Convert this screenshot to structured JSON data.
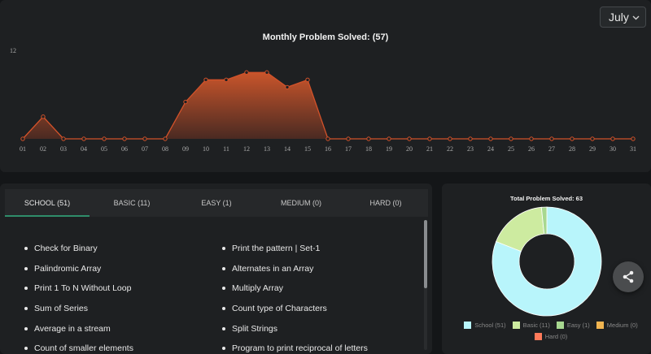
{
  "month_select": {
    "value": "July"
  },
  "chart": {
    "title": "Monthly Problem Solved: (57)"
  },
  "chart_data": {
    "type": "area",
    "title": "Monthly Problem Solved: (57)",
    "x": [
      "01",
      "02",
      "03",
      "04",
      "05",
      "06",
      "07",
      "08",
      "09",
      "10",
      "11",
      "12",
      "13",
      "14",
      "15",
      "16",
      "17",
      "18",
      "19",
      "20",
      "21",
      "22",
      "23",
      "24",
      "25",
      "26",
      "27",
      "28",
      "29",
      "30",
      "31"
    ],
    "values": [
      0,
      3,
      0,
      0,
      0,
      0,
      0,
      0,
      5,
      8,
      8,
      9,
      9,
      7,
      8,
      0,
      0,
      0,
      0,
      0,
      0,
      0,
      0,
      0,
      0,
      0,
      0,
      0,
      0,
      0,
      0
    ],
    "ylim": [
      0,
      12
    ],
    "yticks": [
      "12"
    ],
    "colors": {
      "line": "#d2522a",
      "fill_top": "#c9552b",
      "fill_bottom": "#4a2a22",
      "marker_fill": "#1e2022"
    },
    "grid": false
  },
  "tabs": [
    {
      "label": "SCHOOL (51)",
      "active": true
    },
    {
      "label": "BASIC (11)",
      "active": false
    },
    {
      "label": "EASY (1)",
      "active": false
    },
    {
      "label": "MEDIUM (0)",
      "active": false
    },
    {
      "label": "HARD (0)",
      "active": false
    }
  ],
  "problems": {
    "col1": [
      "Check for Binary",
      "Palindromic Array",
      "Print 1 To N Without Loop",
      "Sum of Series",
      "Average in a stream",
      "Count of smaller elements"
    ],
    "col2": [
      "Print the pattern | Set-1",
      "Alternates in an Array",
      "Multiply Array",
      "Count type of Characters",
      "Split Strings",
      "Program to print reciprocal of letters"
    ]
  },
  "donut": {
    "title": "Total Problem Solved: 63",
    "chart_data": {
      "type": "pie",
      "categories": [
        "School",
        "Basic",
        "Easy",
        "Medium",
        "Hard"
      ],
      "values": [
        51,
        11,
        1,
        0,
        0
      ],
      "colors": [
        "#b8f5fb",
        "#cdeba0",
        "#a8d890",
        "#f0b450",
        "#ff7a5a"
      ]
    },
    "legend": [
      "School (51)",
      "Basic (11)",
      "Easy (1)",
      "Medium (0)",
      "Hard (0)"
    ]
  },
  "share": {
    "icon": "share-icon"
  }
}
